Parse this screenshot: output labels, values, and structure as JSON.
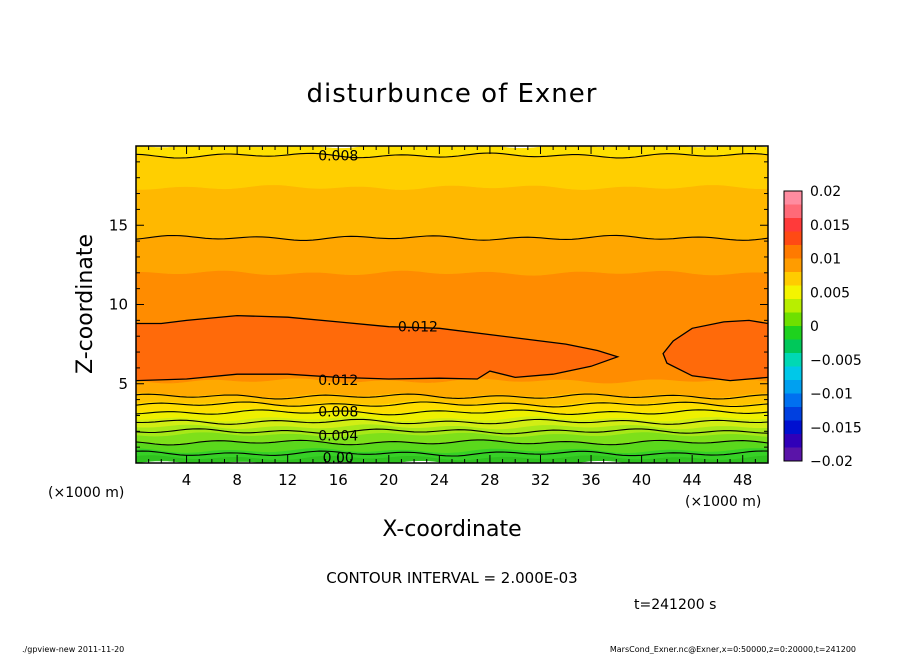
{
  "chart_data": {
    "type": "contour",
    "title": "disturbunce of Exner",
    "xlabel": "X-coordinate",
    "ylabel": "Z-coordinate",
    "x_unit_left": "(×1000 m)",
    "x_unit_right": "(×1000 m)",
    "xlim": [
      0,
      50
    ],
    "ylim": [
      0,
      20
    ],
    "xticks": [
      {
        "v": 4,
        "label": "4"
      },
      {
        "v": 8,
        "label": "8"
      },
      {
        "v": 12,
        "label": "12"
      },
      {
        "v": 16,
        "label": "16"
      },
      {
        "v": 20,
        "label": "20"
      },
      {
        "v": 24,
        "label": "24"
      },
      {
        "v": 28,
        "label": "28"
      },
      {
        "v": 32,
        "label": "32"
      },
      {
        "v": 36,
        "label": "36"
      },
      {
        "v": 40,
        "label": "40"
      },
      {
        "v": 44,
        "label": "44"
      },
      {
        "v": 48,
        "label": "48"
      }
    ],
    "yticks": [
      {
        "v": 5,
        "label": "5"
      },
      {
        "v": 10,
        "label": "10"
      },
      {
        "v": 15,
        "label": "15"
      }
    ],
    "contour_interval_text": "CONTOUR INTERVAL = 2.000E-03",
    "time_text": "t=241200 s",
    "bands": [
      {
        "z0": 0.0,
        "z1": 0.35,
        "color": "#2fc21f"
      },
      {
        "z0": 0.35,
        "z1": 0.8,
        "color": "#36d126"
      },
      {
        "z0": 0.8,
        "z1": 1.3,
        "color": "#5ad81c"
      },
      {
        "z0": 1.3,
        "z1": 1.8,
        "color": "#7ee01a"
      },
      {
        "z0": 1.8,
        "z1": 2.3,
        "color": "#a8e818"
      },
      {
        "z0": 2.3,
        "z1": 2.8,
        "color": "#d2ee14"
      },
      {
        "z0": 2.8,
        "z1": 3.3,
        "color": "#eef000"
      },
      {
        "z0": 3.3,
        "z1": 3.8,
        "color": "#ffde00"
      },
      {
        "z0": 3.8,
        "z1": 4.3,
        "color": "#ffc300"
      },
      {
        "z0": 4.3,
        "z1": 5.2,
        "color": "#ffa900"
      },
      {
        "z0": 5.2,
        "z1": 12,
        "color": "#ff8c00"
      },
      {
        "z0": 12,
        "z1": 14.2,
        "color": "#ffa600"
      },
      {
        "z0": 14.2,
        "z1": 17.4,
        "color": "#ffb800"
      },
      {
        "z0": 17.4,
        "z1": 19.4,
        "color": "#ffcf00"
      },
      {
        "z0": 19.4,
        "z1": 20,
        "color": "#ffe000"
      }
    ],
    "inner_color": "#ff6a0a",
    "contour_lines": [
      0.6,
      1.3,
      2.0,
      2.6,
      3.2,
      3.7,
      4.2,
      14.2,
      19.4
    ],
    "contour_labels": [
      {
        "text": "0.00",
        "x": 16,
        "z": 0.35
      },
      {
        "text": "0.004",
        "x": 16,
        "z": 1.75
      },
      {
        "text": "0.008",
        "x": 16,
        "z": 3.25
      },
      {
        "text": "0.012",
        "x": 16,
        "z": 5.25
      },
      {
        "text": "0.012",
        "x": 22.3,
        "z": 8.6
      },
      {
        "text": "0.008",
        "x": 16,
        "z": 19.4
      }
    ],
    "colorbar": {
      "ticks": [
        {
          "v": 0.02,
          "label": "0.02"
        },
        {
          "v": 0.015,
          "label": "0.015"
        },
        {
          "v": 0.01,
          "label": "0.01"
        },
        {
          "v": 0.005,
          "label": "0.005"
        },
        {
          "v": 0,
          "label": "0"
        },
        {
          "v": -0.005,
          "label": "−0.005"
        },
        {
          "v": -0.01,
          "label": "−0.01"
        },
        {
          "v": -0.015,
          "label": "−0.015"
        },
        {
          "v": -0.02,
          "label": "−0.02"
        }
      ],
      "colors": [
        "#ff8ca0",
        "#ff6a78",
        "#ff3a3a",
        "#ff4a14",
        "#ff7a00",
        "#ff9c00",
        "#ffcc00",
        "#f4f400",
        "#b8ee00",
        "#6ee000",
        "#1ed21e",
        "#00c85a",
        "#00d8b4",
        "#00c8e8",
        "#00a0f0",
        "#0070f0",
        "#0040e0",
        "#0010d0",
        "#3000b8",
        "#5a14a8"
      ]
    }
  },
  "footer": {
    "left": "./gpview-new   2011-11-20",
    "right": "MarsCond_Exner.nc@Exner,x=0:50000,z=0:20000,t=241200"
  }
}
